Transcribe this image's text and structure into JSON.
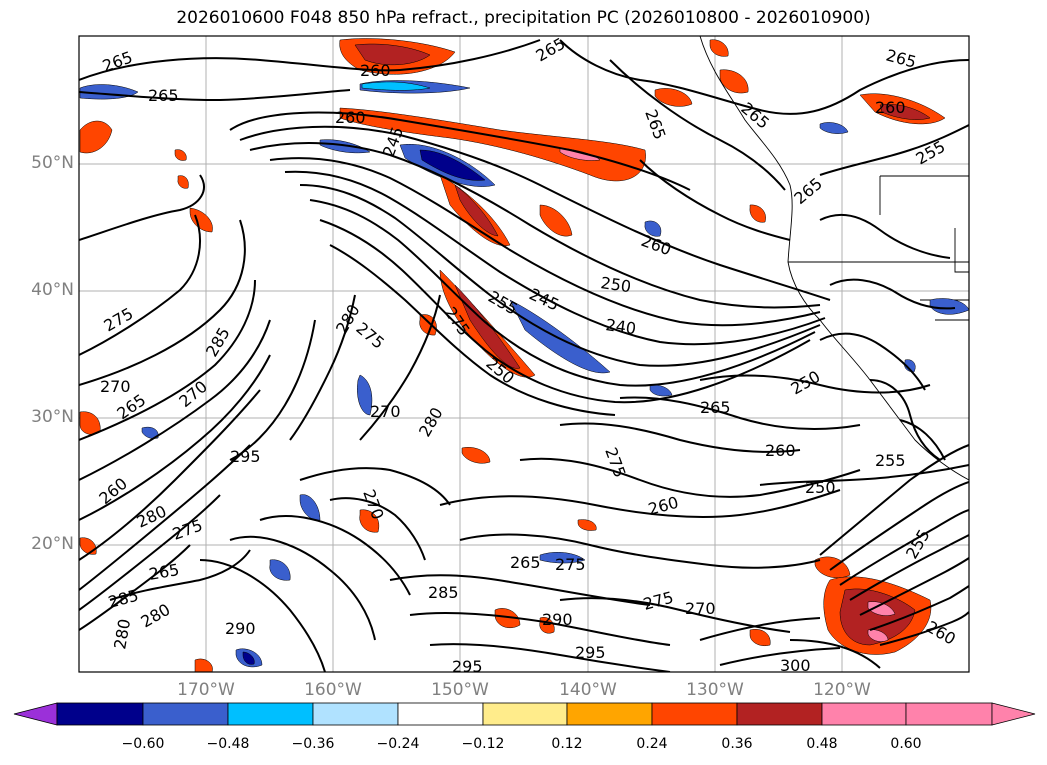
{
  "title": "2026010600 F048 850 hPa refract., precipitation PC (2026010800 - 2026010900)",
  "lat_labels": [
    "50°N",
    "40°N",
    "30°N",
    "20°N"
  ],
  "lon_labels": [
    "170°W",
    "160°W",
    "150°W",
    "140°W",
    "130°W",
    "120°W"
  ],
  "contour_labels": [
    "265",
    "265",
    "265",
    "265",
    "260",
    "245",
    "260",
    "265",
    "265",
    "255",
    "260",
    "265",
    "250",
    "240",
    "245",
    "255",
    "275",
    "260",
    "275",
    "285",
    "280",
    "270",
    "265",
    "270",
    "280",
    "270",
    "275",
    "295",
    "265",
    "260",
    "255",
    "250",
    "275",
    "260",
    "250",
    "265",
    "275",
    "285",
    "290",
    "295",
    "295",
    "300",
    "270",
    "275",
    "280",
    "280",
    "285",
    "290",
    "280",
    "260",
    "275",
    "265",
    "270",
    "250",
    "255",
    "260"
  ],
  "colorbar": {
    "ticks": [
      "−0.60",
      "−0.48",
      "−0.36",
      "−0.24",
      "−0.12",
      "0.12",
      "0.24",
      "0.36",
      "0.48",
      "0.60"
    ],
    "colors": [
      "#9b30d9",
      "#00008b",
      "#3a5fcd",
      "#00bfff",
      "#b0e2ff",
      "#ffffff",
      "#ffec8b",
      "#ffa500",
      "#ff4500",
      "#b22222",
      "#ff82ab",
      "#ff82ab"
    ]
  },
  "precip_colors": {
    "neg_dark": "#00008b",
    "neg_mid": "#3a5fcd",
    "neg_light": "#00bfff",
    "neg_pale": "#b0e2ff",
    "pos_pale": "#ffec8b",
    "pos_mid": "#ffa500",
    "pos_strong": "#ff4500",
    "pos_dark": "#b22222",
    "pos_max": "#ff82ab"
  }
}
